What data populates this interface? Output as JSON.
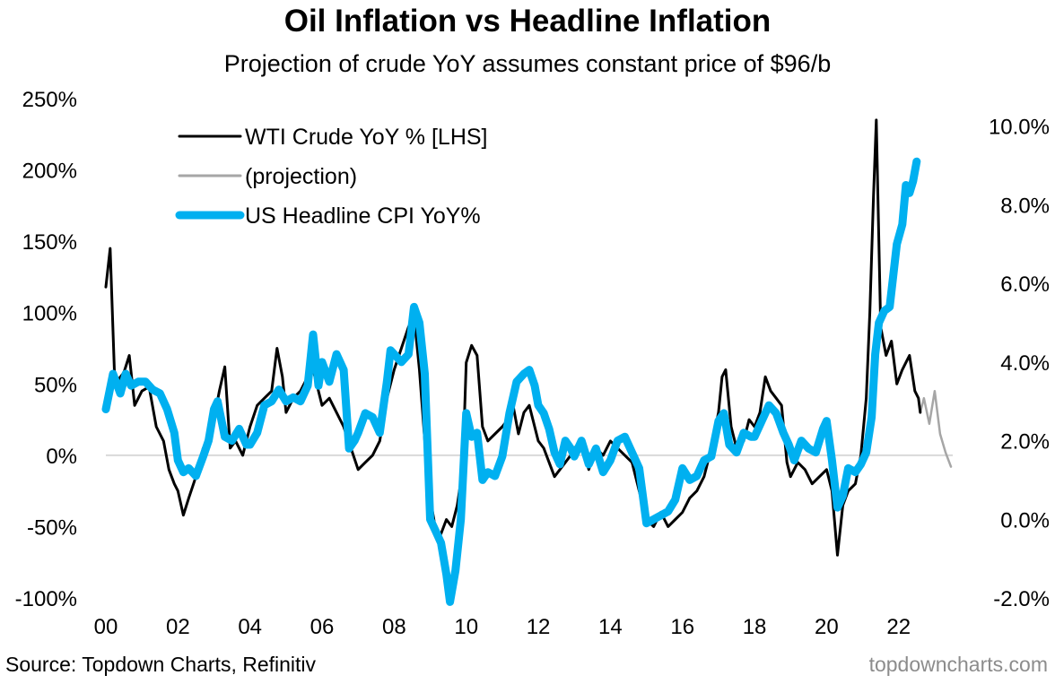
{
  "title": "Oil Inflation vs Headline Inflation",
  "subtitle": "Projection of crude YoY assumes constant price of $96/b",
  "source": "Source: Topdown Charts, Refinitiv",
  "watermark": "topdowncharts.com",
  "chart_data": {
    "type": "line",
    "x_range": [
      2000.0,
      2023.5
    ],
    "x_ticks": [
      "00",
      "02",
      "04",
      "06",
      "08",
      "10",
      "12",
      "14",
      "16",
      "18",
      "20",
      "22"
    ],
    "x_tick_years": [
      2000,
      2002,
      2004,
      2006,
      2008,
      2010,
      2012,
      2014,
      2016,
      2018,
      2020,
      2022
    ],
    "left_axis": {
      "ylim": [
        -100,
        250
      ],
      "ticks": [
        -100,
        -50,
        0,
        50,
        100,
        150,
        200,
        250
      ],
      "tick_labels": [
        "-100%",
        "-50%",
        "0%",
        "50%",
        "100%",
        "150%",
        "200%",
        "250%"
      ]
    },
    "right_axis": {
      "ylim": [
        -2,
        10.7
      ],
      "ticks": [
        -2,
        0,
        2,
        4,
        6,
        8,
        10
      ],
      "tick_labels": [
        "-2.0%",
        "0.0%",
        "2.0%",
        "4.0%",
        "6.0%",
        "8.0%",
        "10.0%"
      ]
    },
    "zero_line": true,
    "grid": false,
    "legend": "top-left",
    "series": [
      {
        "name": "WTI Crude YoY % [LHS]",
        "axis": "left",
        "color": "#000000",
        "points": [
          [
            2000.0,
            118
          ],
          [
            2000.12,
            145
          ],
          [
            2000.25,
            50
          ],
          [
            2000.5,
            58
          ],
          [
            2000.65,
            70
          ],
          [
            2000.8,
            35
          ],
          [
            2001.0,
            45
          ],
          [
            2001.2,
            48
          ],
          [
            2001.4,
            20
          ],
          [
            2001.6,
            10
          ],
          [
            2001.75,
            -10
          ],
          [
            2001.9,
            -20
          ],
          [
            2002.0,
            -25
          ],
          [
            2002.15,
            -42
          ],
          [
            2002.3,
            -30
          ],
          [
            2002.5,
            -15
          ],
          [
            2002.7,
            5
          ],
          [
            2002.85,
            10
          ],
          [
            2003.0,
            25
          ],
          [
            2003.15,
            45
          ],
          [
            2003.3,
            62
          ],
          [
            2003.45,
            5
          ],
          [
            2003.6,
            10
          ],
          [
            2003.8,
            0
          ],
          [
            2004.0,
            20
          ],
          [
            2004.2,
            35
          ],
          [
            2004.4,
            40
          ],
          [
            2004.6,
            45
          ],
          [
            2004.75,
            75
          ],
          [
            2004.9,
            55
          ],
          [
            2005.0,
            30
          ],
          [
            2005.2,
            40
          ],
          [
            2005.4,
            45
          ],
          [
            2005.6,
            55
          ],
          [
            2005.75,
            60
          ],
          [
            2005.9,
            45
          ],
          [
            2006.0,
            35
          ],
          [
            2006.2,
            40
          ],
          [
            2006.4,
            30
          ],
          [
            2006.6,
            20
          ],
          [
            2006.8,
            5
          ],
          [
            2007.0,
            -10
          ],
          [
            2007.2,
            -5
          ],
          [
            2007.4,
            0
          ],
          [
            2007.6,
            10
          ],
          [
            2007.8,
            40
          ],
          [
            2008.0,
            60
          ],
          [
            2008.2,
            75
          ],
          [
            2008.4,
            90
          ],
          [
            2008.55,
            98
          ],
          [
            2008.7,
            60
          ],
          [
            2008.85,
            10
          ],
          [
            2009.0,
            -30
          ],
          [
            2009.15,
            -52
          ],
          [
            2009.3,
            -55
          ],
          [
            2009.45,
            -45
          ],
          [
            2009.6,
            -50
          ],
          [
            2009.75,
            -35
          ],
          [
            2009.9,
            -10
          ],
          [
            2010.0,
            65
          ],
          [
            2010.15,
            77
          ],
          [
            2010.3,
            70
          ],
          [
            2010.45,
            20
          ],
          [
            2010.6,
            10
          ],
          [
            2010.8,
            15
          ],
          [
            2011.0,
            20
          ],
          [
            2011.15,
            25
          ],
          [
            2011.3,
            35
          ],
          [
            2011.45,
            15
          ],
          [
            2011.6,
            30
          ],
          [
            2011.75,
            35
          ],
          [
            2011.9,
            20
          ],
          [
            2012.0,
            10
          ],
          [
            2012.15,
            5
          ],
          [
            2012.3,
            -5
          ],
          [
            2012.45,
            -15
          ],
          [
            2012.6,
            -10
          ],
          [
            2012.75,
            -5
          ],
          [
            2012.9,
            0
          ],
          [
            2013.0,
            5
          ],
          [
            2013.2,
            10
          ],
          [
            2013.4,
            -10
          ],
          [
            2013.6,
            5
          ],
          [
            2013.8,
            0
          ],
          [
            2014.0,
            10
          ],
          [
            2014.2,
            5
          ],
          [
            2014.4,
            0
          ],
          [
            2014.6,
            -5
          ],
          [
            2014.8,
            -25
          ],
          [
            2015.0,
            -45
          ],
          [
            2015.2,
            -50
          ],
          [
            2015.4,
            -40
          ],
          [
            2015.6,
            -50
          ],
          [
            2015.8,
            -45
          ],
          [
            2016.0,
            -40
          ],
          [
            2016.2,
            -30
          ],
          [
            2016.4,
            -25
          ],
          [
            2016.6,
            -15
          ],
          [
            2016.8,
            5
          ],
          [
            2017.0,
            30
          ],
          [
            2017.1,
            55
          ],
          [
            2017.2,
            60
          ],
          [
            2017.35,
            20
          ],
          [
            2017.5,
            5
          ],
          [
            2017.7,
            10
          ],
          [
            2017.85,
            25
          ],
          [
            2018.0,
            20
          ],
          [
            2018.15,
            30
          ],
          [
            2018.3,
            55
          ],
          [
            2018.45,
            45
          ],
          [
            2018.6,
            40
          ],
          [
            2018.75,
            35
          ],
          [
            2018.9,
            -5
          ],
          [
            2019.0,
            -15
          ],
          [
            2019.2,
            -5
          ],
          [
            2019.4,
            -10
          ],
          [
            2019.6,
            -20
          ],
          [
            2019.8,
            -15
          ],
          [
            2020.0,
            -10
          ],
          [
            2020.15,
            -25
          ],
          [
            2020.3,
            -70
          ],
          [
            2020.45,
            -35
          ],
          [
            2020.6,
            -25
          ],
          [
            2020.8,
            -20
          ],
          [
            2020.95,
            0
          ],
          [
            2021.1,
            40
          ],
          [
            2021.2,
            100
          ],
          [
            2021.3,
            180
          ],
          [
            2021.38,
            235
          ],
          [
            2021.5,
            90
          ],
          [
            2021.65,
            70
          ],
          [
            2021.8,
            80
          ],
          [
            2021.95,
            50
          ],
          [
            2022.1,
            60
          ],
          [
            2022.2,
            65
          ],
          [
            2022.3,
            70
          ],
          [
            2022.45,
            45
          ],
          [
            2022.55,
            40
          ],
          [
            2022.6,
            30
          ]
        ]
      },
      {
        "name": "(projection)",
        "axis": "left",
        "color": "#a6a6a6",
        "points": [
          [
            2022.6,
            30
          ],
          [
            2022.7,
            40
          ],
          [
            2022.85,
            22
          ],
          [
            2023.0,
            45
          ],
          [
            2023.15,
            15
          ],
          [
            2023.3,
            2
          ],
          [
            2023.45,
            -8
          ]
        ]
      },
      {
        "name": "US Headline CPI YoY%",
        "axis": "right",
        "color": "#00b0f0",
        "points": [
          [
            2000.0,
            2.8
          ],
          [
            2000.2,
            3.7
          ],
          [
            2000.4,
            3.2
          ],
          [
            2000.55,
            3.7
          ],
          [
            2000.7,
            3.4
          ],
          [
            2000.9,
            3.5
          ],
          [
            2001.1,
            3.5
          ],
          [
            2001.3,
            3.3
          ],
          [
            2001.5,
            3.2
          ],
          [
            2001.7,
            2.8
          ],
          [
            2001.9,
            2.2
          ],
          [
            2002.0,
            1.5
          ],
          [
            2002.15,
            1.2
          ],
          [
            2002.3,
            1.3
          ],
          [
            2002.5,
            1.1
          ],
          [
            2002.7,
            1.6
          ],
          [
            2002.85,
            2.0
          ],
          [
            2003.0,
            2.8
          ],
          [
            2003.1,
            3.0
          ],
          [
            2003.3,
            2.1
          ],
          [
            2003.5,
            2.0
          ],
          [
            2003.7,
            2.3
          ],
          [
            2003.9,
            1.9
          ],
          [
            2004.0,
            1.9
          ],
          [
            2004.2,
            2.2
          ],
          [
            2004.4,
            2.9
          ],
          [
            2004.6,
            3.0
          ],
          [
            2004.8,
            3.3
          ],
          [
            2005.0,
            3.0
          ],
          [
            2005.2,
            3.1
          ],
          [
            2005.4,
            3.0
          ],
          [
            2005.6,
            3.4
          ],
          [
            2005.75,
            4.7
          ],
          [
            2005.9,
            3.4
          ],
          [
            2006.0,
            4.0
          ],
          [
            2006.2,
            3.5
          ],
          [
            2006.4,
            4.2
          ],
          [
            2006.6,
            3.8
          ],
          [
            2006.75,
            1.8
          ],
          [
            2006.9,
            2.0
          ],
          [
            2007.0,
            2.2
          ],
          [
            2007.2,
            2.7
          ],
          [
            2007.4,
            2.6
          ],
          [
            2007.6,
            2.2
          ],
          [
            2007.8,
            3.5
          ],
          [
            2007.9,
            4.3
          ],
          [
            2008.0,
            4.2
          ],
          [
            2008.2,
            4.0
          ],
          [
            2008.4,
            4.2
          ],
          [
            2008.55,
            5.4
          ],
          [
            2008.7,
            5.0
          ],
          [
            2008.85,
            3.7
          ],
          [
            2009.0,
            0.0
          ],
          [
            2009.15,
            -0.3
          ],
          [
            2009.3,
            -0.6
          ],
          [
            2009.45,
            -1.4
          ],
          [
            2009.55,
            -2.1
          ],
          [
            2009.7,
            -1.3
          ],
          [
            2009.85,
            0.0
          ],
          [
            2010.0,
            2.7
          ],
          [
            2010.15,
            2.1
          ],
          [
            2010.3,
            2.2
          ],
          [
            2010.45,
            1.0
          ],
          [
            2010.6,
            1.2
          ],
          [
            2010.8,
            1.1
          ],
          [
            2011.0,
            1.6
          ],
          [
            2011.2,
            2.7
          ],
          [
            2011.4,
            3.5
          ],
          [
            2011.6,
            3.7
          ],
          [
            2011.75,
            3.8
          ],
          [
            2011.9,
            3.4
          ],
          [
            2012.0,
            2.9
          ],
          [
            2012.15,
            2.7
          ],
          [
            2012.3,
            2.3
          ],
          [
            2012.45,
            1.7
          ],
          [
            2012.6,
            1.4
          ],
          [
            2012.75,
            2.0
          ],
          [
            2012.9,
            1.8
          ],
          [
            2013.0,
            1.6
          ],
          [
            2013.2,
            2.0
          ],
          [
            2013.4,
            1.4
          ],
          [
            2013.6,
            1.8
          ],
          [
            2013.8,
            1.2
          ],
          [
            2014.0,
            1.5
          ],
          [
            2014.2,
            2.0
          ],
          [
            2014.4,
            2.1
          ],
          [
            2014.6,
            1.7
          ],
          [
            2014.8,
            1.3
          ],
          [
            2015.0,
            -0.1
          ],
          [
            2015.2,
            0.0
          ],
          [
            2015.4,
            0.1
          ],
          [
            2015.6,
            0.2
          ],
          [
            2015.8,
            0.5
          ],
          [
            2016.0,
            1.3
          ],
          [
            2016.2,
            1.0
          ],
          [
            2016.4,
            1.1
          ],
          [
            2016.6,
            1.5
          ],
          [
            2016.8,
            1.6
          ],
          [
            2017.0,
            2.5
          ],
          [
            2017.15,
            2.7
          ],
          [
            2017.3,
            1.9
          ],
          [
            2017.5,
            1.7
          ],
          [
            2017.7,
            2.2
          ],
          [
            2017.9,
            2.1
          ],
          [
            2018.0,
            2.1
          ],
          [
            2018.2,
            2.5
          ],
          [
            2018.4,
            2.9
          ],
          [
            2018.6,
            2.7
          ],
          [
            2018.8,
            2.2
          ],
          [
            2018.95,
            1.9
          ],
          [
            2019.1,
            1.5
          ],
          [
            2019.3,
            2.0
          ],
          [
            2019.5,
            1.8
          ],
          [
            2019.7,
            1.7
          ],
          [
            2019.9,
            2.3
          ],
          [
            2020.0,
            2.5
          ],
          [
            2020.15,
            1.5
          ],
          [
            2020.3,
            0.3
          ],
          [
            2020.45,
            0.6
          ],
          [
            2020.6,
            1.3
          ],
          [
            2020.8,
            1.2
          ],
          [
            2020.95,
            1.4
          ],
          [
            2021.1,
            1.7
          ],
          [
            2021.25,
            2.6
          ],
          [
            2021.35,
            4.2
          ],
          [
            2021.45,
            5.0
          ],
          [
            2021.6,
            5.3
          ],
          [
            2021.75,
            5.4
          ],
          [
            2021.85,
            6.2
          ],
          [
            2021.95,
            7.0
          ],
          [
            2022.1,
            7.5
          ],
          [
            2022.2,
            8.5
          ],
          [
            2022.3,
            8.3
          ],
          [
            2022.4,
            8.6
          ],
          [
            2022.5,
            9.1
          ]
        ]
      }
    ]
  }
}
